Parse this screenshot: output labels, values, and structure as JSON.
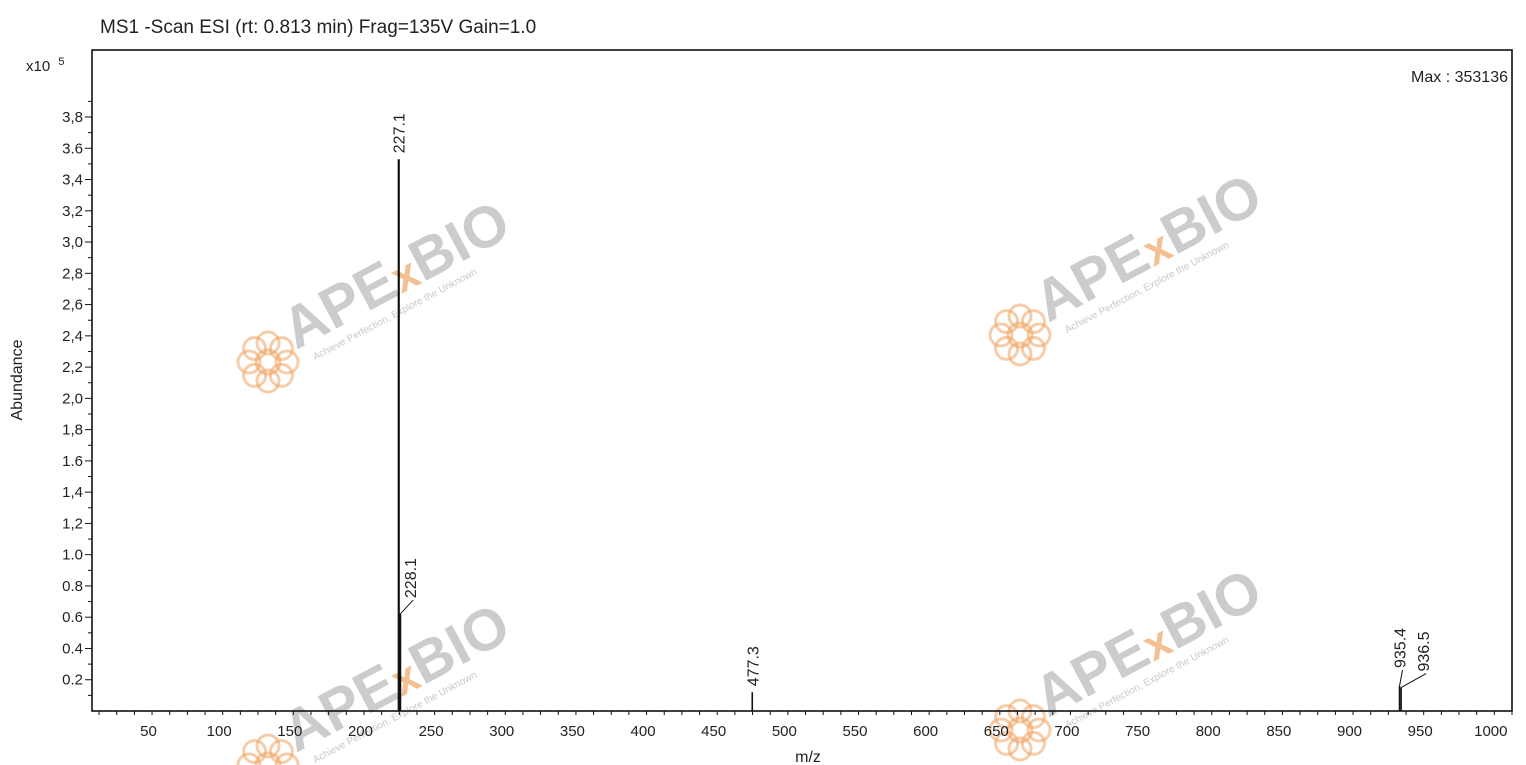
{
  "title": "MS1 -Scan ESI (rt: 0.813 min) Frag=135V Gain=1.0",
  "max_label": "Max : 353136",
  "watermark": {
    "prefix": "APE",
    "x": "x",
    "suffix": "BIO",
    "tagline": "Achieve Perfection, Explore the Unknown",
    "logo_icon": "flower-logo-icon"
  },
  "chart_data": {
    "type": "bar",
    "title": "MS1 -Scan ESI (rt: 0.813 min) Frag=135V Gain=1.0",
    "xlabel": "m/z",
    "ylabel": "Abundance",
    "y_multiplier_label": "x10",
    "y_multiplier_exp": "5",
    "xlim": [
      10,
      1015
    ],
    "ylim": [
      0,
      4.0
    ],
    "xticks": [
      50,
      100,
      150,
      200,
      250,
      300,
      350,
      400,
      450,
      500,
      550,
      600,
      650,
      700,
      750,
      800,
      850,
      900,
      950,
      1000
    ],
    "yticks": [
      "0.2",
      "0.4",
      "0.6",
      "0.8",
      "1.0",
      "1,2",
      "1,4",
      "1.6",
      "1,8",
      "2,0",
      "2,2",
      "2,4",
      "2,6",
      "2,8",
      "3,0",
      "3,2",
      "3,4",
      "3.6",
      "3,8"
    ],
    "peaks": [
      {
        "x": 227.1,
        "y": 3.53,
        "label": "227.1"
      },
      {
        "x": 228.1,
        "y": 0.62,
        "label": "228.1"
      },
      {
        "x": 477.3,
        "y": 0.12,
        "label": "477.3"
      },
      {
        "x": 935.4,
        "y": 0.16,
        "label": "935.4"
      },
      {
        "x": 936.5,
        "y": 0.15,
        "label": "936.5"
      }
    ],
    "grid": false,
    "line_color": "#111111"
  }
}
